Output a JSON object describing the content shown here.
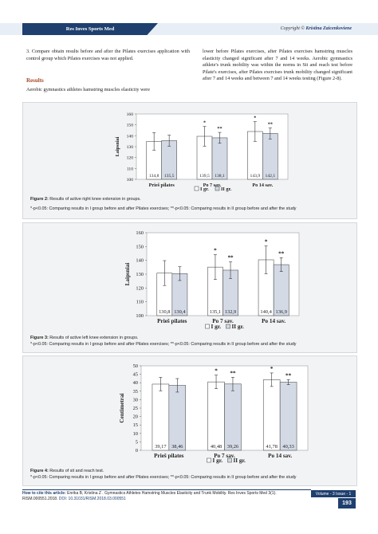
{
  "header": {
    "journal": "Res Inves Sports Med",
    "copyright_prefix": "Copyright ©",
    "copyright_author": "Kristina Zaicenkoviene"
  },
  "text": {
    "left_para": "3.   Compare obtain results before and after the Pilates exercises application with control group which Pilates exercises was not applied.",
    "results_heading": "Results",
    "results_para": "Aerobic gymnastics athletes hamstring muscles elasticity were",
    "right_para": "lower before Pilates exercises, after Pilates exercises hamstring muscles elasticity changed significant after 7 and 14 weeks. Aerobic gymnastics athlete's trunk mobility was within the norms in Sit and reach test before Pilate's exercises, after Pilates exercises trunk mobility changed significant after 7 and 14 weeks and between 7 and 14 weeks testing (Figure 2-8)."
  },
  "figures": [
    {
      "caption_label": "Figure 2:",
      "caption_text": "Results of active right knee extension in groups.",
      "note": "*-p<0.05: Comparing results in I group before and after Pilates exercises; **-p<0.05: Comparing results in II group before and after the study",
      "chart_data": {
        "type": "bar",
        "ylabel": "Laipsniai",
        "ylim": [
          100,
          160
        ],
        "yticks": [
          100,
          110,
          120,
          130,
          140,
          150,
          160
        ],
        "categories": [
          "Prieš pilates",
          "Po 7 sav.",
          "Po 14 sav."
        ],
        "series": [
          {
            "name": "I gr.",
            "values": [
              134.8,
              139.5,
              143.9
            ],
            "labels": [
              "134,8",
              "139,5",
              "143,9"
            ],
            "err": [
              8,
              9,
              9
            ],
            "sig": [
              "",
              "*",
              "*"
            ],
            "color": "#ffffff"
          },
          {
            "name": "II gr.",
            "values": [
              135.5,
              138.1,
              142.1
            ],
            "labels": [
              "135,5",
              "138,1",
              "142,1"
            ],
            "err": [
              5,
              5,
              5
            ],
            "sig": [
              "",
              "**",
              "**"
            ],
            "color": "#d3d9e5"
          }
        ]
      }
    },
    {
      "caption_label": "Figure 3:",
      "caption_text": "Results of active left knee extension in groups.",
      "note": "*-p<0.05: Comparing results in I group before and after Pilates exercises; **-p<0.05: Comparing results in II group before and after the study",
      "chart_data": {
        "type": "bar",
        "ylabel": "Laipsniai",
        "ylim": [
          100,
          160
        ],
        "yticks": [
          100,
          110,
          120,
          130,
          140,
          150,
          160
        ],
        "categories": [
          "Prieš pilates",
          "Po 7 sav.",
          "Po 14 sav."
        ],
        "series": [
          {
            "name": "I gr.",
            "values": [
              130.8,
              135.1,
              140.4
            ],
            "labels": [
              "130,8",
              "135,1",
              "140,4"
            ],
            "err": [
              9,
              9,
              10
            ],
            "sig": [
              "",
              "*",
              "*"
            ],
            "color": "#ffffff"
          },
          {
            "name": "II gr.",
            "values": [
              130.4,
              132.9,
              136.9
            ],
            "labels": [
              "130,4",
              "132,9",
              "136,9"
            ],
            "err": [
              5,
              6,
              5
            ],
            "sig": [
              "",
              "**",
              "**"
            ],
            "color": "#d3d9e5"
          }
        ]
      }
    },
    {
      "caption_label": "Figure 4:",
      "caption_text": "Results of sit and reach test.",
      "note": "*-p<0.05: Comparing results in I group before and after Pilates exercises; **-p<0.05: Comparing results in II group before and after the study",
      "chart_data": {
        "type": "bar",
        "ylabel": "Centimetrai",
        "ylim": [
          0,
          50
        ],
        "yticks": [
          0,
          5,
          10,
          15,
          20,
          25,
          30,
          35,
          40,
          45,
          50
        ],
        "categories": [
          "Prieš pilates",
          "Po 7 sav.",
          "Po 14 sav."
        ],
        "series": [
          {
            "name": "I gr.",
            "values": [
              39.17,
              40.48,
              41.78
            ],
            "labels": [
              "39,17",
              "40,48",
              "41,78"
            ],
            "err": [
              4,
              4,
              4
            ],
            "sig": [
              "",
              "*",
              "*"
            ],
            "color": "#ffffff"
          },
          {
            "name": "II gr.",
            "values": [
              38.46,
              39.26,
              40.33
            ],
            "labels": [
              "38,46",
              "39,26",
              "40,33"
            ],
            "err": [
              4,
              4,
              1.5
            ],
            "sig": [
              "",
              "**",
              "**"
            ],
            "color": "#d3d9e5"
          }
        ]
      }
    }
  ],
  "footer": {
    "cite_label": "How to cite this article:",
    "cite_text": "Enrika B, Kristina Z . Gymnastics Athletes Hamstring Muscles Elasticity and Trunk Mobility. Res Inves Sports Med 3(1).",
    "doi_prefix": "RISM.000551.2018.",
    "doi_text": "DOI: 10.31031/RISM.2018.03.000551",
    "volume": "Volume - 3  Issue - 1",
    "page": "193"
  }
}
